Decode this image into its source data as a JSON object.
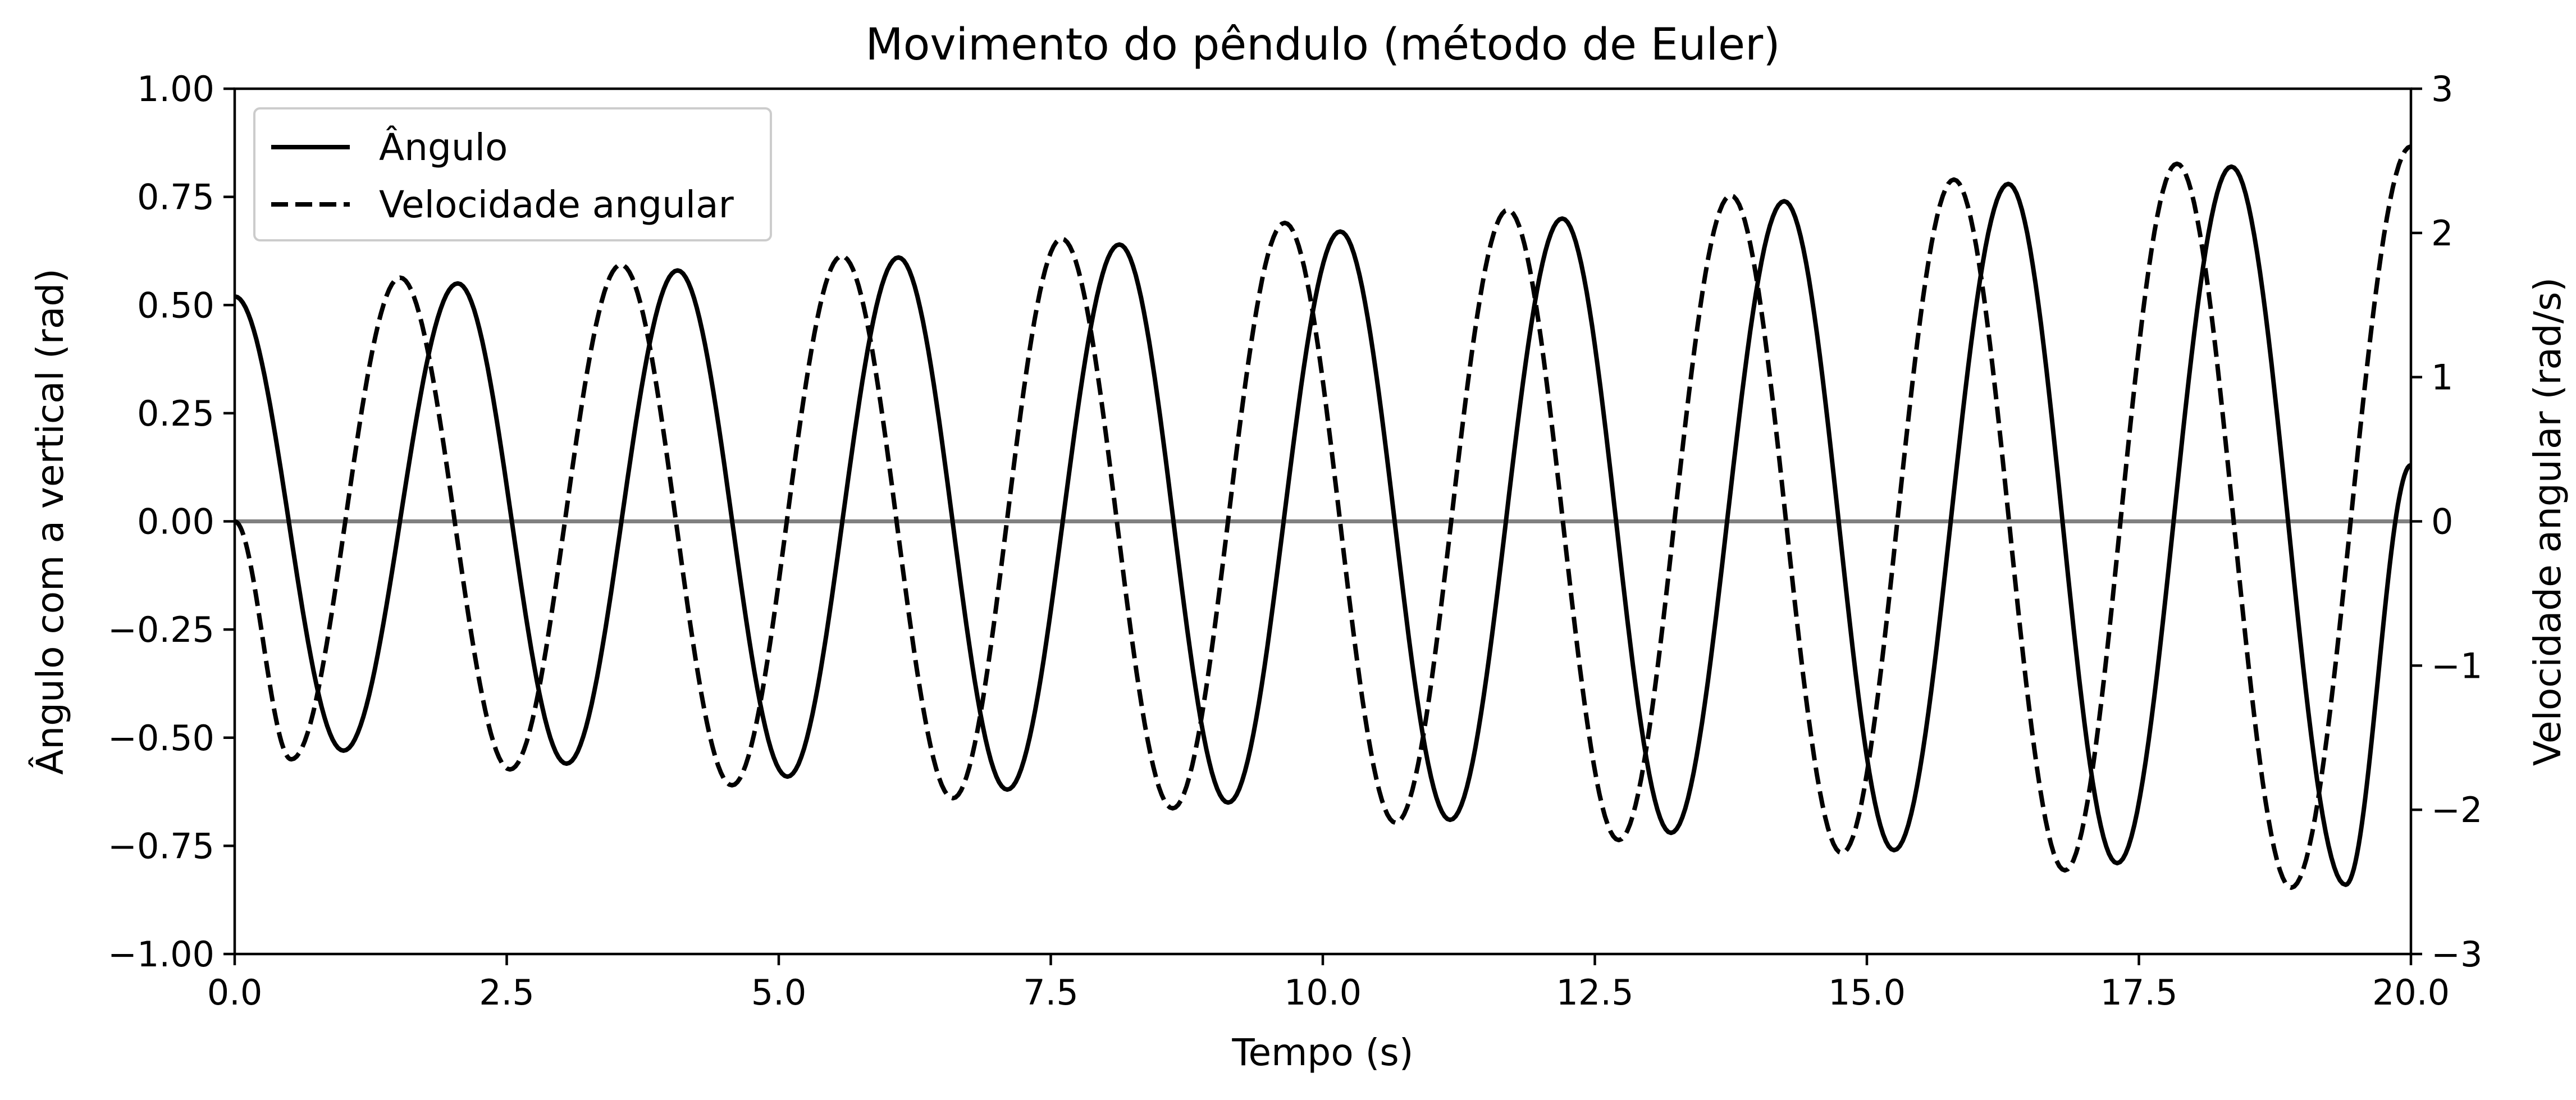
{
  "chart_data": {
    "type": "line",
    "title": "Movimento do pêndulo (método de Euler)",
    "xlabel": "Tempo (s)",
    "ylabel_left": "Ângulo com a vertical (rad)",
    "ylabel_right": "Velocidade angular (rad/s)",
    "xlim": [
      0,
      20
    ],
    "ylim_left": [
      -1,
      1
    ],
    "ylim_right": [
      -3,
      3
    ],
    "x_ticks": [
      "0.0",
      "2.5",
      "5.0",
      "7.5",
      "10.0",
      "12.5",
      "15.0",
      "17.5",
      "20.0"
    ],
    "y_left_ticks": [
      "−1.00",
      "−0.75",
      "−0.50",
      "−0.25",
      "0.00",
      "0.25",
      "0.50",
      "0.75",
      "1.00"
    ],
    "y_right_ticks": [
      "−3",
      "−2",
      "−1",
      "0",
      "1",
      "2",
      "3"
    ],
    "grid": false,
    "legend_position": "top-left",
    "reference_line": {
      "y": 0,
      "color": "#808080"
    },
    "series": [
      {
        "name": "Ângulo",
        "axis": "left",
        "style": "solid",
        "color": "#000000",
        "points": [
          [
            0.0,
            0.52
          ],
          [
            1.0,
            -0.53
          ],
          [
            2.05,
            0.55
          ],
          [
            3.05,
            -0.56
          ],
          [
            4.07,
            0.58
          ],
          [
            5.08,
            -0.59
          ],
          [
            6.1,
            0.61
          ],
          [
            7.1,
            -0.62
          ],
          [
            8.13,
            0.64
          ],
          [
            9.13,
            -0.65
          ],
          [
            10.16,
            0.67
          ],
          [
            11.17,
            -0.69
          ],
          [
            12.2,
            0.7
          ],
          [
            13.2,
            -0.72
          ],
          [
            14.24,
            0.74
          ],
          [
            15.25,
            -0.76
          ],
          [
            16.3,
            0.78
          ],
          [
            17.3,
            -0.79
          ],
          [
            18.35,
            0.82
          ],
          [
            19.4,
            -0.84
          ],
          [
            20.0,
            0.13
          ]
        ]
      },
      {
        "name": "Velocidade angular",
        "axis": "right",
        "style": "dashed",
        "color": "#000000",
        "points": [
          [
            0.0,
            0.0
          ],
          [
            0.52,
            -1.65
          ],
          [
            1.52,
            1.69
          ],
          [
            2.53,
            -1.72
          ],
          [
            3.55,
            1.78
          ],
          [
            4.57,
            -1.83
          ],
          [
            5.58,
            1.84
          ],
          [
            6.6,
            -1.92
          ],
          [
            7.6,
            1.96
          ],
          [
            8.62,
            -1.99
          ],
          [
            9.65,
            2.07
          ],
          [
            10.67,
            -2.09
          ],
          [
            11.7,
            2.16
          ],
          [
            12.72,
            -2.21
          ],
          [
            13.75,
            2.26
          ],
          [
            14.77,
            -2.3
          ],
          [
            15.8,
            2.37
          ],
          [
            16.82,
            -2.42
          ],
          [
            17.85,
            2.48
          ],
          [
            18.9,
            -2.54
          ],
          [
            20.0,
            2.6
          ]
        ]
      }
    ]
  }
}
